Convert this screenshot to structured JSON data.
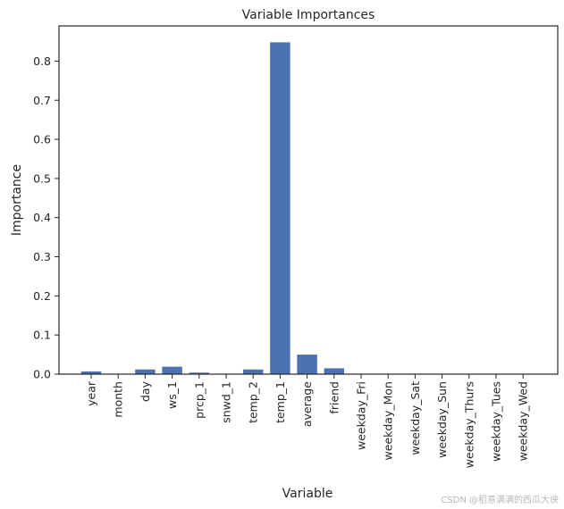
{
  "chart_data": {
    "type": "bar",
    "title": "Variable Importances",
    "xlabel": "Variable",
    "ylabel": "Importance",
    "categories": [
      "year",
      "month",
      "day",
      "ws_1",
      "prcp_1",
      "snwd_1",
      "temp_2",
      "temp_1",
      "average",
      "friend",
      "weekday_Fri",
      "weekday_Mon",
      "weekday_Sat",
      "weekday_Sun",
      "weekday_Thurs",
      "weekday_Tues",
      "weekday_Wed"
    ],
    "values": [
      0.007,
      0.001,
      0.012,
      0.019,
      0.004,
      0.001,
      0.012,
      0.848,
      0.05,
      0.015,
      0.001,
      0.001,
      0.001,
      0.001,
      0.001,
      0.001,
      0.001
    ],
    "ylim": [
      0,
      0.89
    ],
    "yticks": [
      "0.0",
      "0.1",
      "0.2",
      "0.3",
      "0.4",
      "0.5",
      "0.6",
      "0.7",
      "0.8"
    ],
    "grid": false,
    "bar_color": "#4c72b0"
  },
  "watermark": "CSDN @稻意满满的西瓜大侠"
}
